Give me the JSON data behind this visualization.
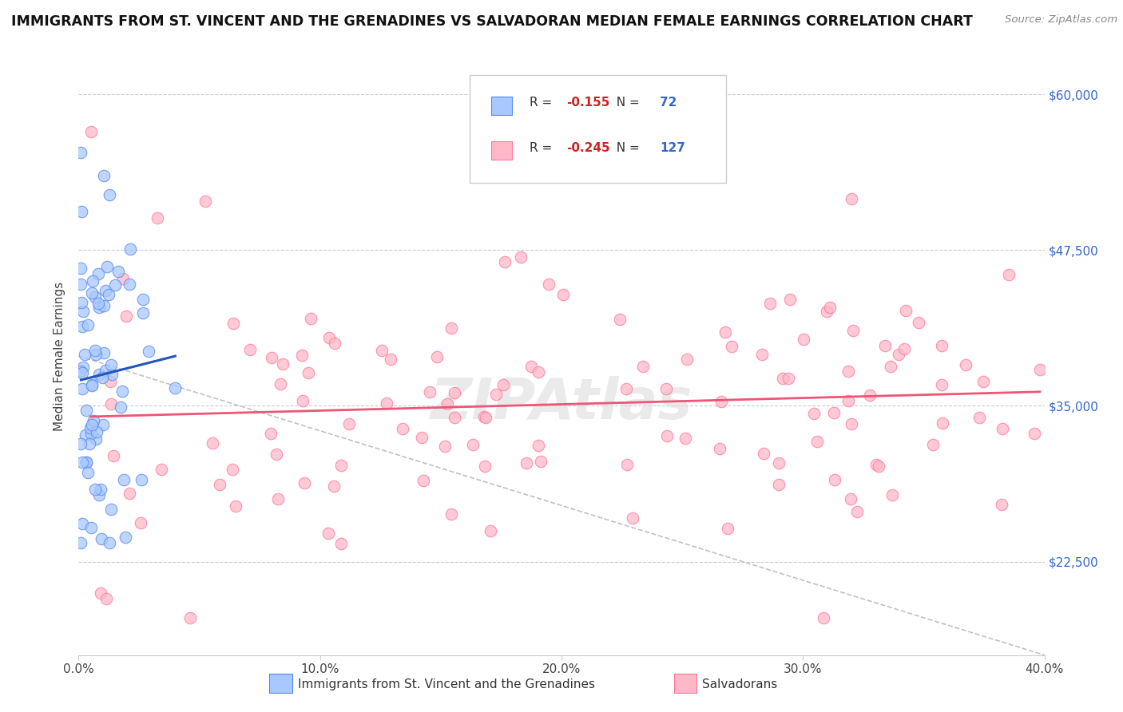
{
  "title": "IMMIGRANTS FROM ST. VINCENT AND THE GRENADINES VS SALVADORAN MEDIAN FEMALE EARNINGS CORRELATION CHART",
  "source": "Source: ZipAtlas.com",
  "ylabel": "Median Female Earnings",
  "x_min": 0.0,
  "x_max": 0.4,
  "y_min": 15000,
  "y_max": 63000,
  "y_ticks": [
    22500,
    35000,
    47500,
    60000
  ],
  "y_tick_labels": [
    "$22,500",
    "$35,000",
    "$47,500",
    "$60,000"
  ],
  "x_ticks": [
    0.0,
    0.1,
    0.2,
    0.3,
    0.4
  ],
  "x_tick_labels": [
    "0.0%",
    "10.0%",
    "20.0%",
    "30.0%",
    "40.0%"
  ],
  "blue_color": "#A8C8FF",
  "pink_color": "#FFB8C8",
  "blue_edge": "#5588EE",
  "pink_edge": "#FF7799",
  "blue_line_color": "#2255BB",
  "pink_line_color": "#EE5577",
  "blue_R": -0.155,
  "blue_N": 72,
  "pink_R": -0.245,
  "pink_N": 127,
  "watermark": "ZIPAtlas",
  "title_fontsize": 12.5,
  "label_fontsize": 11,
  "tick_fontsize": 11
}
